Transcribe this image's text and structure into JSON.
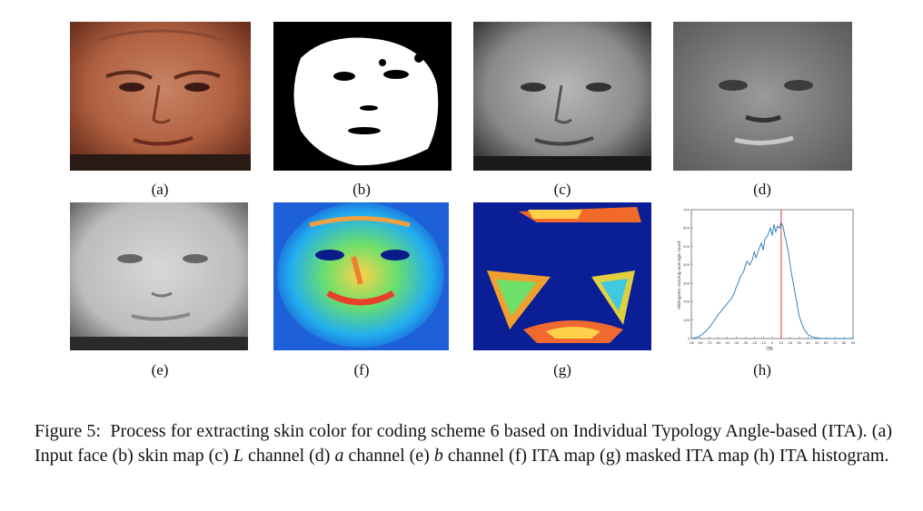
{
  "figure": {
    "panels": [
      {
        "id": "a",
        "label": "(a)",
        "desc": "Input face"
      },
      {
        "id": "b",
        "label": "(b)",
        "desc": "skin map"
      },
      {
        "id": "c",
        "label": "(c)",
        "desc": "L channel"
      },
      {
        "id": "d",
        "label": "(d)",
        "desc": "a channel"
      },
      {
        "id": "e",
        "label": "(e)",
        "desc": "b channel"
      },
      {
        "id": "f",
        "label": "(f)",
        "desc": "ITA map"
      },
      {
        "id": "g",
        "label": "(g)",
        "desc": "masked ITA map"
      },
      {
        "id": "h",
        "label": "(h)",
        "desc": "ITA histogram"
      }
    ],
    "caption": {
      "prefix": "Figure 5:",
      "text_1": "Process for extracting skin color for coding scheme 6 based on Individual Typology Angle-based (ITA). (a) Input face (b) skin map (c) ",
      "var_L": "L",
      "text_2": " channel (d) ",
      "var_a": "a",
      "text_3": " channel (e) ",
      "var_b": "b",
      "text_4": " channel (f) ITA map (g) masked ITA map (h) ITA histogram."
    }
  },
  "chart_data": {
    "type": "line",
    "xlabel": "ITA",
    "ylabel": "Histogram moving average count",
    "xlim": [
      -90,
      90
    ],
    "ylim": [
      0,
      700
    ],
    "x_ticks": [
      -90,
      -80,
      -70,
      -60,
      -50,
      -40,
      -30,
      -20,
      -10,
      0,
      10,
      20,
      30,
      40,
      50,
      60,
      70,
      80,
      90
    ],
    "y_ticks": [
      0,
      100,
      200,
      300,
      400,
      500,
      600,
      700
    ],
    "vertical_line": {
      "x": 10,
      "color": "#d62728"
    },
    "series": [
      {
        "color": "#1f77b4",
        "x": [
          -90,
          -85,
          -80,
          -75,
          -70,
          -65,
          -60,
          -55,
          -50,
          -45,
          -42,
          -40,
          -38,
          -35,
          -32,
          -30,
          -28,
          -25,
          -22,
          -20,
          -18,
          -15,
          -12,
          -10,
          -8,
          -5,
          -2,
          0,
          2,
          4,
          6,
          8,
          10,
          12,
          14,
          16,
          18,
          20,
          22,
          25,
          28,
          30,
          35,
          40,
          45,
          50,
          55,
          60,
          65,
          70,
          80,
          90
        ],
        "y": [
          0,
          5,
          15,
          35,
          60,
          95,
          130,
          160,
          190,
          220,
          250,
          280,
          300,
          340,
          360,
          395,
          420,
          400,
          430,
          470,
          440,
          480,
          520,
          480,
          540,
          560,
          600,
          560,
          620,
          580,
          610,
          600,
          630,
          610,
          560,
          520,
          470,
          400,
          340,
          260,
          180,
          120,
          55,
          20,
          8,
          3,
          1,
          0,
          0,
          0,
          0,
          0
        ]
      }
    ]
  }
}
